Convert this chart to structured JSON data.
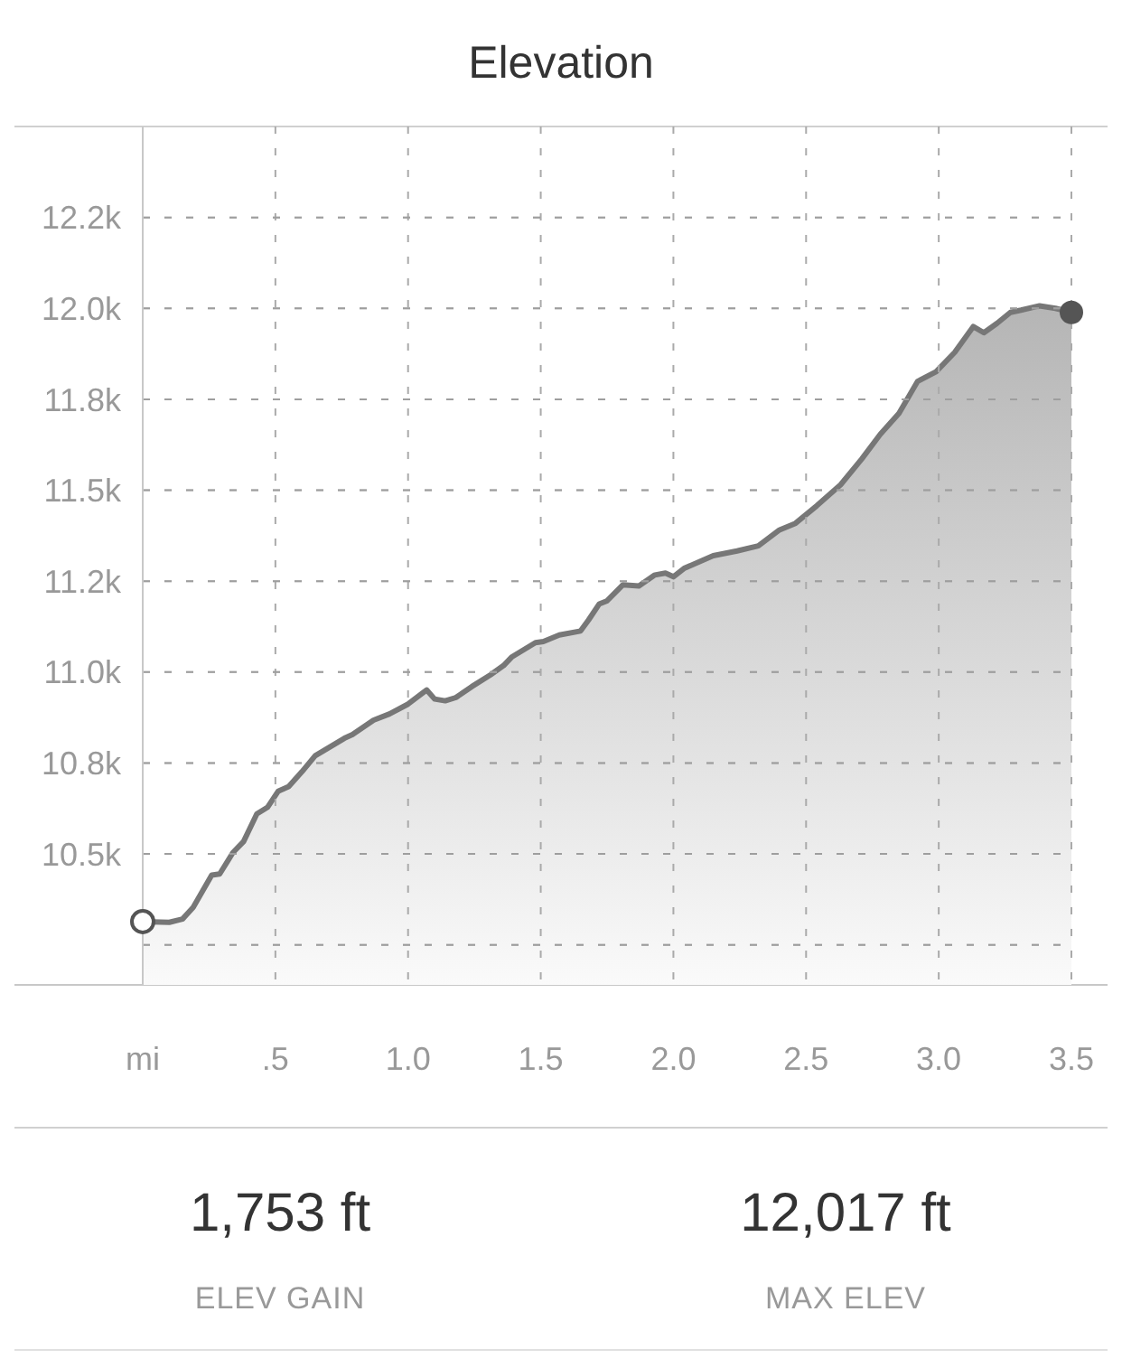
{
  "chart_data": {
    "type": "area",
    "title": "Elevation",
    "color": "#777777",
    "x": [
      0,
      0.1,
      0.15,
      0.19,
      0.26,
      0.29,
      0.34,
      0.38,
      0.43,
      0.47,
      0.51,
      0.55,
      0.6,
      0.65,
      0.76,
      0.79,
      0.87,
      0.93,
      1.0,
      1.07,
      1.1,
      1.14,
      1.18,
      1.24,
      1.31,
      1.36,
      1.39,
      1.48,
      1.51,
      1.57,
      1.65,
      1.68,
      1.72,
      1.75,
      1.81,
      1.87,
      1.93,
      1.97,
      2.0,
      2.04,
      2.15,
      2.24,
      2.32,
      2.4,
      2.46,
      2.54,
      2.63,
      2.71,
      2.78,
      2.85,
      2.92,
      2.99,
      3.06,
      3.13,
      3.17,
      3.22,
      3.27,
      3.31,
      3.38,
      3.44,
      3.5
    ],
    "values": [
      10314,
      10312,
      10321,
      10353,
      10442,
      10445,
      10504,
      10534,
      10610,
      10628,
      10672,
      10685,
      10726,
      10770,
      10818,
      10828,
      10868,
      10885,
      10912,
      10951,
      10926,
      10921,
      10930,
      10960,
      10992,
      11018,
      11041,
      11081,
      11084,
      11102,
      11113,
      11143,
      11187,
      11196,
      11240,
      11237,
      11267,
      11272,
      11262,
      11285,
      11320,
      11333,
      11347,
      11391,
      11409,
      11457,
      11515,
      11586,
      11654,
      11711,
      11799,
      11826,
      11879,
      11950,
      11933,
      11959,
      11989,
      11995,
      12007,
      12000,
      11989
    ],
    "xlim": [
      0,
      3.5
    ],
    "xticks": [
      {
        "value": 0,
        "label": "mi"
      },
      {
        "value": 0.5,
        "label": ".5"
      },
      {
        "value": 1,
        "label": "1.0"
      },
      {
        "value": 1.5,
        "label": "1.5"
      },
      {
        "value": 2,
        "label": "2.0"
      },
      {
        "value": 2.5,
        "label": "2.5"
      },
      {
        "value": 3,
        "label": "3.0"
      },
      {
        "value": 3.5,
        "label": "3.5"
      }
    ],
    "ylim": [
      10140,
      12500
    ],
    "yticks": [
      {
        "value": 10250,
        "label": null
      },
      {
        "value": 10500,
        "label": "10.5k"
      },
      {
        "value": 10750,
        "label": "10.8k"
      },
      {
        "value": 11000,
        "label": "11.0k"
      },
      {
        "value": 11250,
        "label": "11.2k"
      },
      {
        "value": 11500,
        "label": "11.5k"
      },
      {
        "value": 11750,
        "label": "11.8k"
      },
      {
        "value": 12000,
        "label": "12.0k"
      },
      {
        "value": 12250,
        "label": "12.2k"
      }
    ],
    "grid": true,
    "annotations": [
      "1,753 ft",
      "ELEV GAIN",
      "12,017 ft",
      "MAX ELEV"
    ]
  }
}
